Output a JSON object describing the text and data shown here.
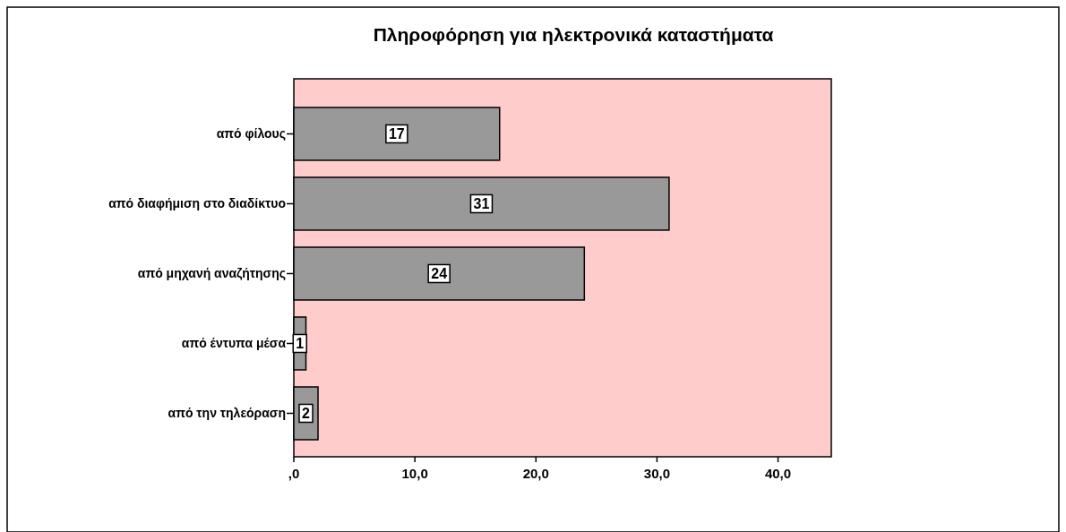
{
  "chart_data": {
    "type": "bar",
    "orientation": "horizontal",
    "title": "Πληροφόρηση για ηλεκτρονικά καταστήματα",
    "categories": [
      "από φίλους",
      "από διαφήμιση στο διαδίκτυο",
      "από μηχανή αναζήτησης",
      "από έντυπα μέσα",
      "από την τηλεόραση"
    ],
    "values": [
      17,
      31,
      24,
      1,
      2
    ],
    "color": "#999999",
    "data_labels": true,
    "xlim": [
      0,
      44.4
    ],
    "xticks": [
      {
        "value": 0,
        "label": ",0"
      },
      {
        "value": 10,
        "label": "10,0"
      },
      {
        "value": 20,
        "label": "20,0"
      },
      {
        "value": 30,
        "label": "30,0"
      },
      {
        "value": 40,
        "label": "40,0"
      }
    ],
    "grid": false
  }
}
